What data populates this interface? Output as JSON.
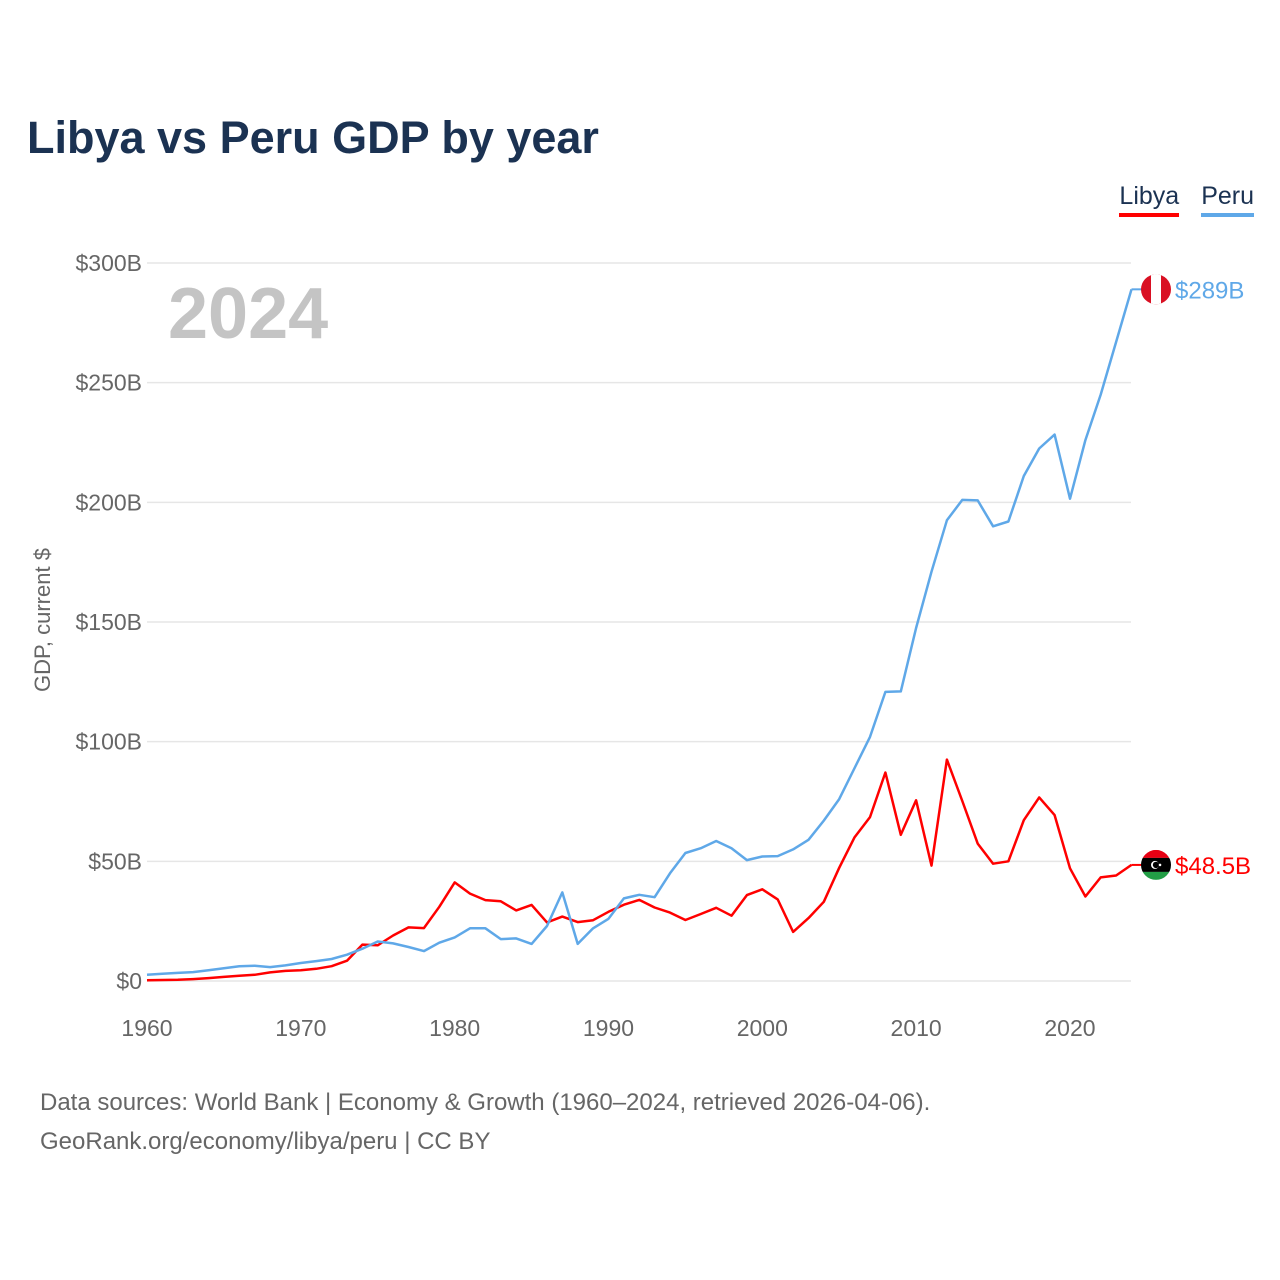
{
  "title": "Libya vs Peru GDP by year",
  "year_label": "2024",
  "source_lines": [
    "Data sources: World Bank | Economy & Growth (1960–2024, retrieved 2026-04-06).",
    "GeoRank.org/economy/libya/peru | CC BY"
  ],
  "chart_data": {
    "type": "line",
    "title": "Libya vs Peru GDP by year",
    "xlabel": "",
    "ylabel": "GDP, current $",
    "xlim": [
      1960,
      2024
    ],
    "ylim": [
      0,
      300
    ],
    "x_ticks": [
      1960,
      1970,
      1980,
      1990,
      2000,
      2010,
      2020
    ],
    "y_ticks": [
      0,
      50,
      100,
      150,
      200,
      250,
      300
    ],
    "y_tick_labels": [
      "$0",
      "$50B",
      "$100B",
      "$150B",
      "$200B",
      "$250B",
      "$300B"
    ],
    "grid": true,
    "legend_position": "top-right",
    "series": [
      {
        "name": "Libya",
        "color": "#ff0000",
        "end_label": "$48.5B",
        "flag": "libya",
        "values": [
          0.3,
          0.4,
          0.5,
          0.8,
          1.2,
          1.7,
          2.2,
          2.6,
          3.6,
          4.2,
          4.5,
          5.1,
          6.2,
          8.5,
          15.2,
          14.9,
          19,
          22.4,
          22.1,
          31,
          41.2,
          36.5,
          33.8,
          33.3,
          29.5,
          31.8,
          24.5,
          26.9,
          24.6,
          25.4,
          28.9,
          31.9,
          33.9,
          30.7,
          28.6,
          25.5,
          28,
          30.6,
          27.3,
          35.9,
          38.3,
          34.1,
          20.5,
          26.3,
          33.1,
          47.3,
          60.1,
          68.5,
          87.1,
          61.1,
          75.5,
          48.2,
          92.5,
          75.2,
          57.4,
          49,
          50,
          67.2,
          76.7,
          69.3,
          47.1,
          35.3,
          43.3,
          44.1,
          48.5
        ]
      },
      {
        "name": "Peru",
        "color": "#5fa8e8",
        "end_label": "$289B",
        "flag": "peru",
        "values": [
          2.6,
          3,
          3.4,
          3.7,
          4.5,
          5.3,
          6.2,
          6.4,
          5.8,
          6.5,
          7.5,
          8.3,
          9.2,
          11,
          13.5,
          16.5,
          15.7,
          14.2,
          12.5,
          16,
          18.2,
          22,
          22,
          17.5,
          17.8,
          15.5,
          23,
          37,
          15.5,
          22,
          26,
          34.5,
          36,
          35,
          45,
          53.5,
          55.5,
          58.5,
          55.5,
          50.5,
          52,
          52.2,
          55,
          59,
          67,
          76,
          89,
          102,
          120.8,
          121,
          147.5,
          171,
          192.5,
          201,
          200.8,
          190,
          192,
          211,
          222.5,
          228.3,
          201.5,
          226,
          245,
          267,
          289
        ]
      }
    ]
  }
}
